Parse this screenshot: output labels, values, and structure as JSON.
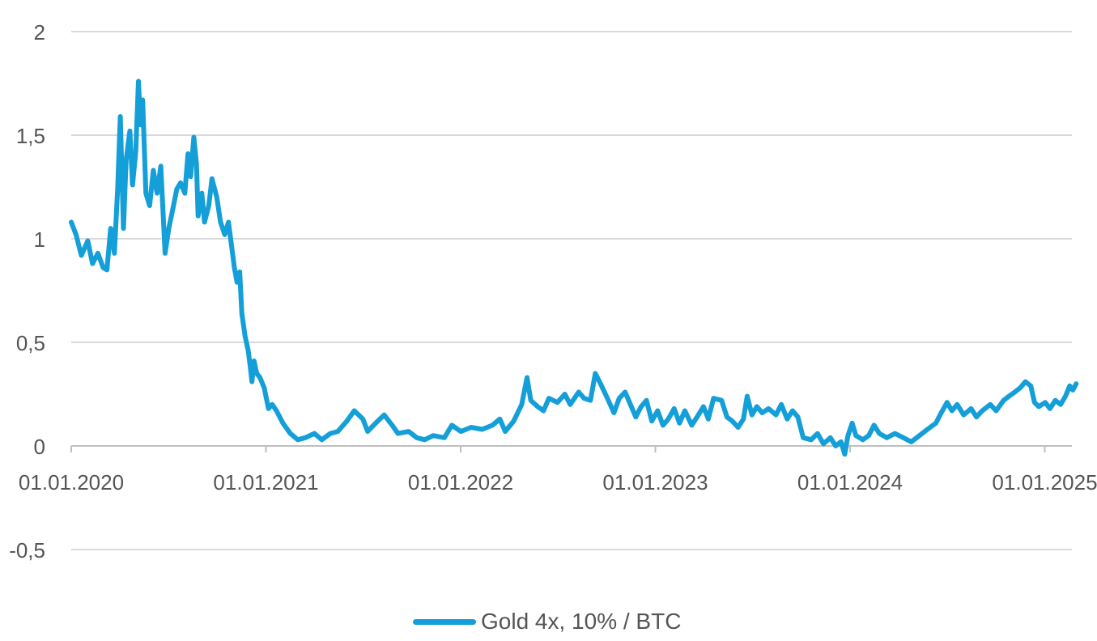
{
  "chart_data": {
    "type": "line",
    "title": "",
    "xlabel": "",
    "ylabel": "",
    "ylim": [
      -0.5,
      2
    ],
    "y_ticks": [
      2,
      1.5,
      1,
      0.5,
      0,
      -0.5
    ],
    "y_tick_labels": [
      "2",
      "1,5",
      "1",
      "0,5",
      "0",
      "-0,5"
    ],
    "x_tick_labels": [
      "01.01.2020",
      "01.01.2021",
      "01.01.2022",
      "01.01.2023",
      "01.01.2024",
      "01.01.2025"
    ],
    "x_range": [
      "2020-01-01",
      "2025-02-28"
    ],
    "grid": true,
    "legend_position": "bottom",
    "colors": {
      "line": "#149fd8",
      "grid": "#d9d9d9",
      "text": "#555555"
    },
    "series": [
      {
        "name": "Gold 4x, 10% / BTC",
        "points": [
          [
            "2020-01-01",
            1.08
          ],
          [
            "2020-01-10",
            1.02
          ],
          [
            "2020-01-20",
            0.92
          ],
          [
            "2020-02-01",
            0.99
          ],
          [
            "2020-02-10",
            0.88
          ],
          [
            "2020-02-20",
            0.93
          ],
          [
            "2020-03-01",
            0.86
          ],
          [
            "2020-03-08",
            0.85
          ],
          [
            "2020-03-15",
            1.05
          ],
          [
            "2020-03-22",
            0.93
          ],
          [
            "2020-03-28",
            1.24
          ],
          [
            "2020-04-02",
            1.59
          ],
          [
            "2020-04-08",
            1.05
          ],
          [
            "2020-04-13",
            1.38
          ],
          [
            "2020-04-20",
            1.52
          ],
          [
            "2020-04-25",
            1.26
          ],
          [
            "2020-05-01",
            1.42
          ],
          [
            "2020-05-06",
            1.76
          ],
          [
            "2020-05-10",
            1.55
          ],
          [
            "2020-05-14",
            1.67
          ],
          [
            "2020-05-20",
            1.22
          ],
          [
            "2020-05-27",
            1.16
          ],
          [
            "2020-06-03",
            1.33
          ],
          [
            "2020-06-10",
            1.22
          ],
          [
            "2020-06-17",
            1.35
          ],
          [
            "2020-06-25",
            0.93
          ],
          [
            "2020-07-02",
            1.05
          ],
          [
            "2020-07-10",
            1.15
          ],
          [
            "2020-07-17",
            1.24
          ],
          [
            "2020-07-24",
            1.27
          ],
          [
            "2020-08-01",
            1.22
          ],
          [
            "2020-08-07",
            1.41
          ],
          [
            "2020-08-12",
            1.3
          ],
          [
            "2020-08-18",
            1.49
          ],
          [
            "2020-08-23",
            1.36
          ],
          [
            "2020-08-26",
            1.11
          ],
          [
            "2020-09-02",
            1.22
          ],
          [
            "2020-09-07",
            1.08
          ],
          [
            "2020-09-15",
            1.16
          ],
          [
            "2020-09-21",
            1.29
          ],
          [
            "2020-09-30",
            1.2
          ],
          [
            "2020-10-07",
            1.08
          ],
          [
            "2020-10-15",
            1.02
          ],
          [
            "2020-10-22",
            1.08
          ],
          [
            "2020-10-28",
            0.96
          ],
          [
            "2020-11-02",
            0.86
          ],
          [
            "2020-11-07",
            0.79
          ],
          [
            "2020-11-12",
            0.84
          ],
          [
            "2020-11-16",
            0.64
          ],
          [
            "2020-11-22",
            0.53
          ],
          [
            "2020-11-28",
            0.46
          ],
          [
            "2020-12-02",
            0.38
          ],
          [
            "2020-12-05",
            0.31
          ],
          [
            "2020-12-09",
            0.41
          ],
          [
            "2020-12-14",
            0.35
          ],
          [
            "2020-12-20",
            0.33
          ],
          [
            "2020-12-28",
            0.28
          ],
          [
            "2021-01-05",
            0.18
          ],
          [
            "2021-01-12",
            0.2
          ],
          [
            "2021-01-20",
            0.17
          ],
          [
            "2021-02-01",
            0.11
          ],
          [
            "2021-02-15",
            0.06
          ],
          [
            "2021-03-01",
            0.03
          ],
          [
            "2021-03-15",
            0.04
          ],
          [
            "2021-04-01",
            0.06
          ],
          [
            "2021-04-15",
            0.03
          ],
          [
            "2021-05-01",
            0.06
          ],
          [
            "2021-05-15",
            0.07
          ],
          [
            "2021-06-01",
            0.12
          ],
          [
            "2021-06-15",
            0.17
          ],
          [
            "2021-07-01",
            0.13
          ],
          [
            "2021-07-10",
            0.07
          ],
          [
            "2021-07-25",
            0.11
          ],
          [
            "2021-08-10",
            0.15
          ],
          [
            "2021-08-25",
            0.1
          ],
          [
            "2021-09-05",
            0.06
          ],
          [
            "2021-09-25",
            0.07
          ],
          [
            "2021-10-10",
            0.04
          ],
          [
            "2021-10-25",
            0.03
          ],
          [
            "2021-11-10",
            0.05
          ],
          [
            "2021-12-01",
            0.04
          ],
          [
            "2021-12-15",
            0.1
          ],
          [
            "2022-01-01",
            0.07
          ],
          [
            "2022-01-20",
            0.09
          ],
          [
            "2022-02-10",
            0.08
          ],
          [
            "2022-03-01",
            0.1
          ],
          [
            "2022-03-15",
            0.13
          ],
          [
            "2022-03-25",
            0.07
          ],
          [
            "2022-04-10",
            0.12
          ],
          [
            "2022-04-25",
            0.2
          ],
          [
            "2022-05-05",
            0.33
          ],
          [
            "2022-05-12",
            0.22
          ],
          [
            "2022-05-25",
            0.19
          ],
          [
            "2022-06-05",
            0.17
          ],
          [
            "2022-06-15",
            0.23
          ],
          [
            "2022-07-01",
            0.21
          ],
          [
            "2022-07-15",
            0.25
          ],
          [
            "2022-07-25",
            0.2
          ],
          [
            "2022-08-10",
            0.26
          ],
          [
            "2022-08-20",
            0.23
          ],
          [
            "2022-09-01",
            0.22
          ],
          [
            "2022-09-10",
            0.35
          ],
          [
            "2022-09-20",
            0.3
          ],
          [
            "2022-10-01",
            0.24
          ],
          [
            "2022-10-15",
            0.16
          ],
          [
            "2022-10-25",
            0.23
          ],
          [
            "2022-11-05",
            0.26
          ],
          [
            "2022-11-15",
            0.2
          ],
          [
            "2022-11-25",
            0.14
          ],
          [
            "2022-12-05",
            0.19
          ],
          [
            "2022-12-15",
            0.22
          ],
          [
            "2022-12-25",
            0.12
          ],
          [
            "2023-01-05",
            0.17
          ],
          [
            "2023-01-15",
            0.1
          ],
          [
            "2023-01-25",
            0.13
          ],
          [
            "2023-02-05",
            0.18
          ],
          [
            "2023-02-15",
            0.11
          ],
          [
            "2023-02-25",
            0.17
          ],
          [
            "2023-03-10",
            0.1
          ],
          [
            "2023-03-20",
            0.14
          ],
          [
            "2023-04-01",
            0.19
          ],
          [
            "2023-04-10",
            0.13
          ],
          [
            "2023-04-20",
            0.23
          ],
          [
            "2023-05-05",
            0.22
          ],
          [
            "2023-05-15",
            0.14
          ],
          [
            "2023-05-25",
            0.12
          ],
          [
            "2023-06-05",
            0.09
          ],
          [
            "2023-06-15",
            0.13
          ],
          [
            "2023-06-22",
            0.24
          ],
          [
            "2023-07-01",
            0.15
          ],
          [
            "2023-07-10",
            0.19
          ],
          [
            "2023-07-20",
            0.16
          ],
          [
            "2023-08-01",
            0.18
          ],
          [
            "2023-08-15",
            0.15
          ],
          [
            "2023-08-25",
            0.2
          ],
          [
            "2023-09-05",
            0.13
          ],
          [
            "2023-09-15",
            0.17
          ],
          [
            "2023-09-25",
            0.14
          ],
          [
            "2023-10-05",
            0.04
          ],
          [
            "2023-10-20",
            0.03
          ],
          [
            "2023-11-01",
            0.06
          ],
          [
            "2023-11-12",
            0.01
          ],
          [
            "2023-11-25",
            0.04
          ],
          [
            "2023-12-05",
            0.0
          ],
          [
            "2023-12-15",
            0.02
          ],
          [
            "2023-12-22",
            -0.04
          ],
          [
            "2023-12-28",
            0.05
          ],
          [
            "2024-01-05",
            0.11
          ],
          [
            "2024-01-12",
            0.05
          ],
          [
            "2024-01-25",
            0.03
          ],
          [
            "2024-02-05",
            0.05
          ],
          [
            "2024-02-15",
            0.1
          ],
          [
            "2024-02-25",
            0.06
          ],
          [
            "2024-03-10",
            0.04
          ],
          [
            "2024-03-25",
            0.06
          ],
          [
            "2024-04-10",
            0.04
          ],
          [
            "2024-04-25",
            0.02
          ],
          [
            "2024-05-10",
            0.05
          ],
          [
            "2024-05-25",
            0.08
          ],
          [
            "2024-06-10",
            0.11
          ],
          [
            "2024-06-20",
            0.16
          ],
          [
            "2024-07-01",
            0.21
          ],
          [
            "2024-07-10",
            0.17
          ],
          [
            "2024-07-20",
            0.2
          ],
          [
            "2024-08-01",
            0.15
          ],
          [
            "2024-08-15",
            0.18
          ],
          [
            "2024-08-25",
            0.14
          ],
          [
            "2024-09-05",
            0.17
          ],
          [
            "2024-09-20",
            0.2
          ],
          [
            "2024-10-01",
            0.17
          ],
          [
            "2024-10-15",
            0.22
          ],
          [
            "2024-10-25",
            0.24
          ],
          [
            "2024-11-05",
            0.26
          ],
          [
            "2024-11-15",
            0.28
          ],
          [
            "2024-11-25",
            0.31
          ],
          [
            "2024-12-05",
            0.29
          ],
          [
            "2024-12-12",
            0.21
          ],
          [
            "2024-12-20",
            0.19
          ],
          [
            "2025-01-01",
            0.21
          ],
          [
            "2025-01-10",
            0.18
          ],
          [
            "2025-01-20",
            0.22
          ],
          [
            "2025-01-30",
            0.2
          ],
          [
            "2025-02-08",
            0.24
          ],
          [
            "2025-02-16",
            0.29
          ],
          [
            "2025-02-22",
            0.27
          ],
          [
            "2025-02-28",
            0.3
          ]
        ]
      }
    ]
  }
}
